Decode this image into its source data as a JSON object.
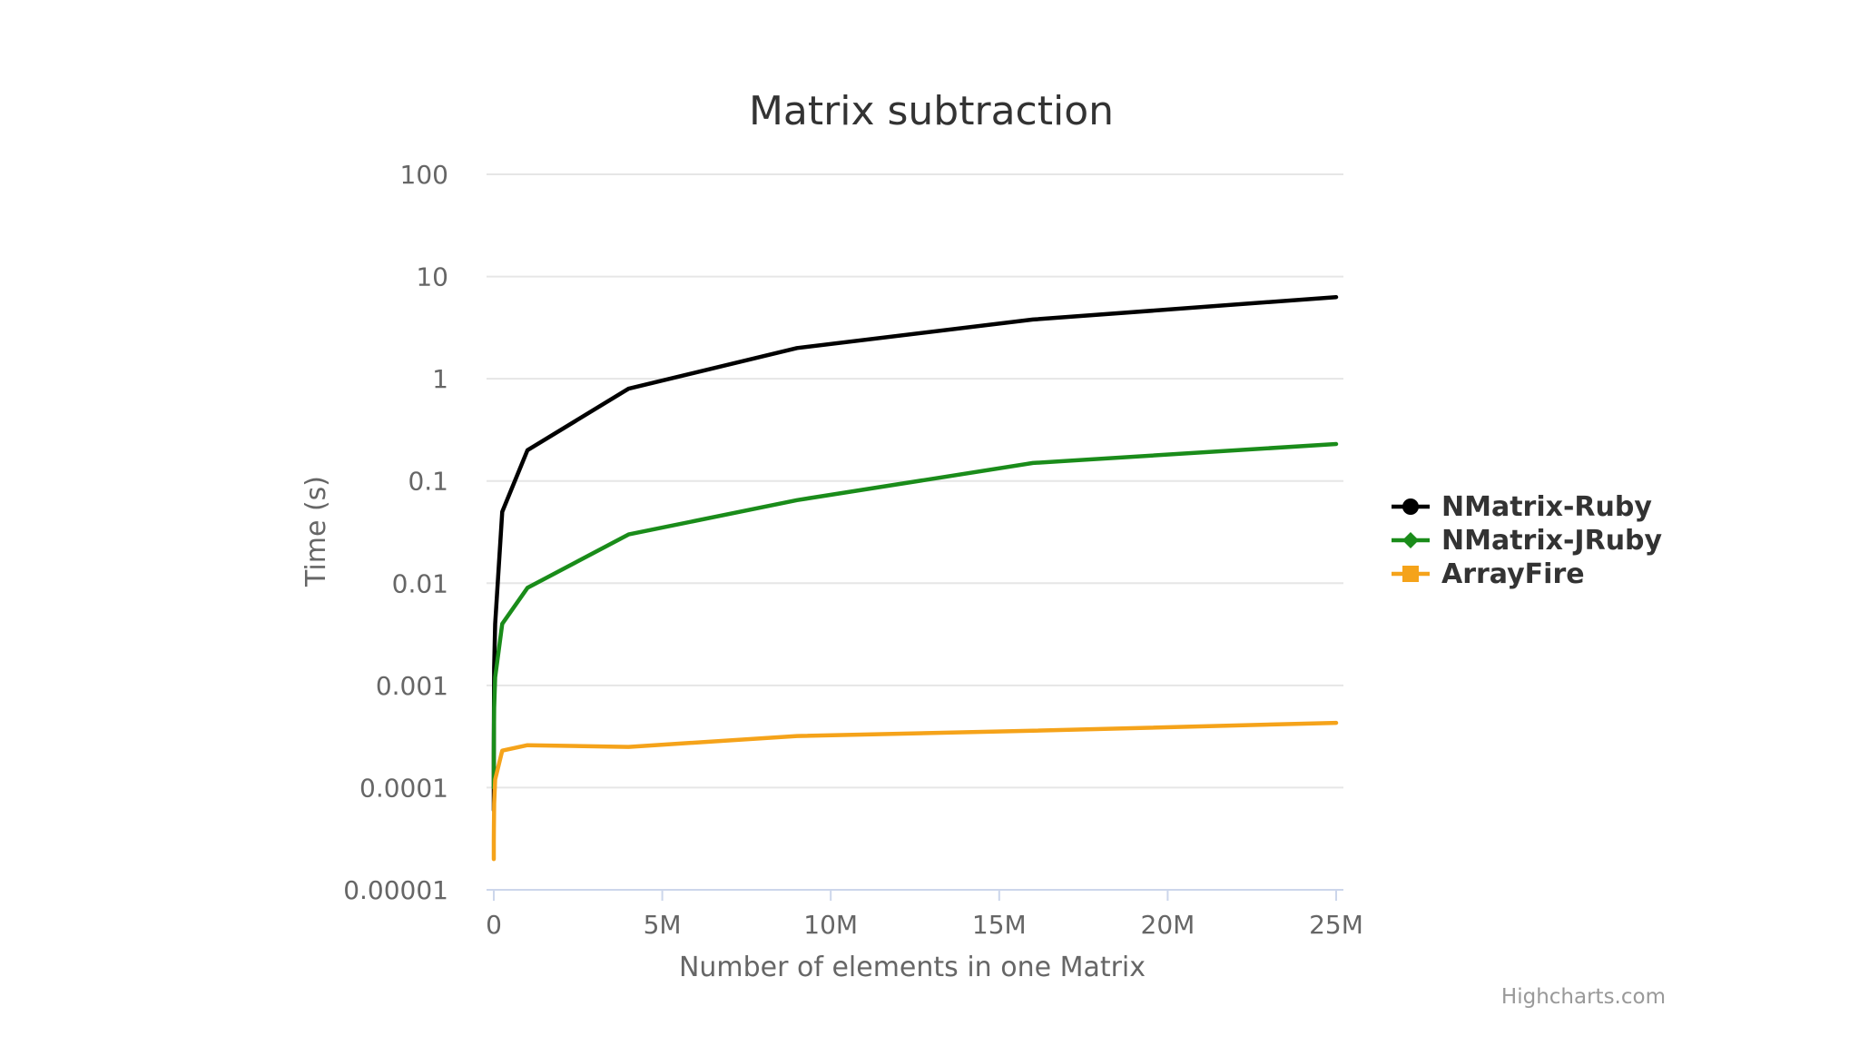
{
  "chart_data": {
    "type": "line",
    "title": "Matrix subtraction",
    "xlabel": "Number of elements in one Matrix",
    "ylabel": "Time (s)",
    "yscale": "log",
    "ylim": [
      1e-05,
      100
    ],
    "xlim": [
      0,
      25000000
    ],
    "yticks": [
      {
        "value": 100,
        "label": "100"
      },
      {
        "value": 10,
        "label": "10"
      },
      {
        "value": 1,
        "label": "1"
      },
      {
        "value": 0.1,
        "label": "0.1"
      },
      {
        "value": 0.01,
        "label": "0.01"
      },
      {
        "value": 0.001,
        "label": "0.001"
      },
      {
        "value": 0.0001,
        "label": "0.0001"
      },
      {
        "value": 1e-05,
        "label": "0.00001"
      }
    ],
    "xticks": [
      {
        "value": 0,
        "label": "0"
      },
      {
        "value": 5000000,
        "label": "5M"
      },
      {
        "value": 10000000,
        "label": "10M"
      },
      {
        "value": 15000000,
        "label": "15M"
      },
      {
        "value": 20000000,
        "label": "20M"
      },
      {
        "value": 25000000,
        "label": "25M"
      }
    ],
    "x": [
      4,
      100,
      2500,
      10000,
      40000,
      250000,
      1000000,
      4000000,
      9000000,
      16000000,
      25000000
    ],
    "series": [
      {
        "name": "NMatrix-Ruby",
        "color": "#000000",
        "marker": "circle",
        "values": [
          6e-05,
          0.0002,
          0.0004,
          0.0015,
          0.004,
          0.05,
          0.2,
          0.8,
          2.0,
          3.8,
          6.3
        ]
      },
      {
        "name": "NMatrix-JRuby",
        "color": "#1a8c1a",
        "marker": "diamond",
        "values": [
          0.0001,
          0.0002,
          0.0003,
          0.0006,
          0.0012,
          0.004,
          0.009,
          0.03,
          0.065,
          0.15,
          0.23
        ]
      },
      {
        "name": "ArrayFire",
        "color": "#f5a31a",
        "marker": "square",
        "values": [
          2e-05,
          3e-05,
          4e-05,
          7e-05,
          0.00012,
          0.00023,
          0.00026,
          0.00025,
          0.00032,
          0.00036,
          0.00043
        ]
      }
    ],
    "legend_position": "right"
  },
  "credits": "Highcharts.com"
}
